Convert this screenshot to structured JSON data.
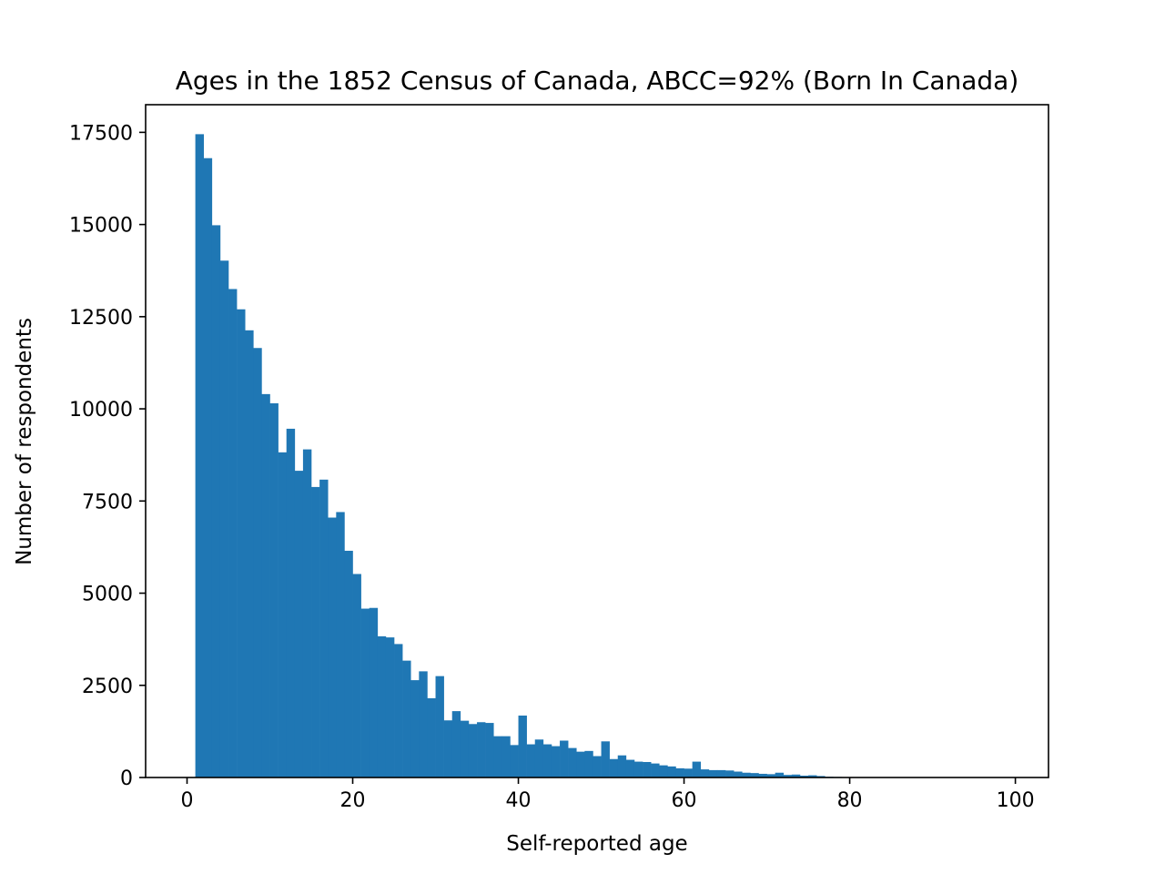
{
  "chart_data": {
    "type": "bar",
    "title": "Ages in the 1852 Census of Canada, ABCC=92% (Born In Canada)",
    "xlabel": "Self-reported age",
    "ylabel": "Number of respondents",
    "xlim": [
      -5,
      104
    ],
    "ylim": [
      0,
      18250
    ],
    "xticks": [
      0,
      20,
      40,
      60,
      80,
      100
    ],
    "yticks": [
      0,
      2500,
      5000,
      7500,
      10000,
      12500,
      15000,
      17500
    ],
    "bin_start": 1,
    "bin_width": 1,
    "values": [
      17450,
      16800,
      14980,
      14020,
      13250,
      12700,
      12130,
      11650,
      10400,
      10150,
      8820,
      9460,
      8320,
      8900,
      7880,
      8080,
      7050,
      7200,
      6150,
      5520,
      4580,
      4600,
      3830,
      3800,
      3620,
      3170,
      2640,
      2880,
      2150,
      2750,
      1550,
      1800,
      1540,
      1450,
      1500,
      1480,
      1120,
      1120,
      880,
      1680,
      900,
      1030,
      900,
      850,
      1000,
      800,
      700,
      720,
      580,
      980,
      500,
      600,
      480,
      430,
      420,
      380,
      330,
      300,
      250,
      240,
      430,
      220,
      200,
      200,
      190,
      160,
      130,
      120,
      100,
      90,
      130,
      70,
      80,
      50,
      60,
      40,
      20,
      15,
      12,
      10,
      8,
      6,
      5,
      4,
      3,
      3,
      2,
      2,
      2,
      2,
      1,
      1,
      1,
      1,
      1,
      1,
      1,
      1,
      1
    ],
    "color": "#1f77b4"
  }
}
